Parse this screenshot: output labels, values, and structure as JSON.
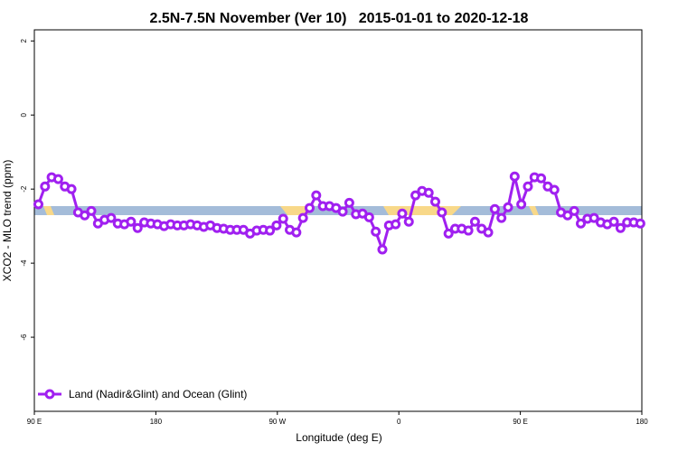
{
  "chart_data": {
    "type": "line",
    "title": "2.5N-7.5N November (Ver 10)   2015-01-01 to 2020-12-18",
    "x_label": "Longitude (deg E)",
    "y_label": "XCO2 - MLO trend (ppm)",
    "xlim": [
      90,
      540
    ],
    "xticks": [
      {
        "value": 90,
        "label": "90 E"
      },
      180,
      {
        "value": 270,
        "label": "90 W"
      },
      {
        "value": 360,
        "label": "0"
      },
      {
        "value": 450,
        "label": "90 E"
      },
      {
        "value": 540,
        "label": "180"
      }
    ],
    "ylim": [
      -8,
      2.3
    ],
    "yticks": [
      -6,
      -4,
      -2,
      0,
      2
    ],
    "legend": "bottom-left",
    "x": [
      93,
      97.9,
      102.8,
      107.7,
      112.6,
      117.5,
      122.4,
      127.3,
      132.2,
      137.1,
      142,
      146.9,
      151.8,
      156.7,
      161.6,
      166.5,
      171.4,
      176.3,
      181.2,
      186.1,
      191,
      195.9,
      200.8,
      205.7,
      210.6,
      215.5,
      220.4,
      225.3,
      230.2,
      235.1,
      240,
      244.9,
      249.8,
      254.7,
      259.6,
      264.5,
      269.4,
      274.3,
      279.2,
      284.1,
      289,
      293.9,
      298.8,
      303.7,
      308.6,
      313.5,
      318.4,
      323.3,
      328.2,
      333.1,
      338,
      342.9,
      347.8,
      352.7,
      357.6,
      362.5,
      367.4,
      372.3,
      377.2,
      382.1,
      387,
      391.9,
      396.8,
      401.7,
      406.6,
      411.5,
      416.4,
      421.3,
      426.2,
      431.1,
      436,
      440.9,
      445.8,
      450.7,
      455.6,
      460.5,
      465.4,
      470.3,
      475.2,
      480.1,
      485,
      489.9,
      494.8,
      499.7,
      504.6,
      509.5,
      514.4,
      519.3,
      524.2,
      529.1,
      534,
      538.9
    ],
    "series": [
      {
        "name": "Land (Nadir&Glint) and Ocean (Glint)",
        "color": "#a020f0",
        "values": [
          -2.41,
          -1.93,
          -1.68,
          -1.73,
          -1.93,
          -2.0,
          -2.63,
          -2.71,
          -2.59,
          -2.93,
          -2.83,
          -2.78,
          -2.93,
          -2.95,
          -2.88,
          -3.05,
          -2.9,
          -2.93,
          -2.95,
          -3.0,
          -2.95,
          -2.98,
          -2.98,
          -2.95,
          -2.98,
          -3.02,
          -2.98,
          -3.05,
          -3.07,
          -3.1,
          -3.1,
          -3.1,
          -3.2,
          -3.12,
          -3.1,
          -3.12,
          -2.98,
          -2.8,
          -3.1,
          -3.17,
          -2.78,
          -2.51,
          -2.17,
          -2.46,
          -2.46,
          -2.51,
          -2.61,
          -2.37,
          -2.68,
          -2.66,
          -2.76,
          -3.15,
          -3.63,
          -2.98,
          -2.95,
          -2.66,
          -2.88,
          -2.17,
          -2.05,
          -2.1,
          -2.34,
          -2.63,
          -3.2,
          -3.07,
          -3.07,
          -3.12,
          -2.88,
          -3.07,
          -3.17,
          -2.54,
          -2.78,
          -2.49,
          -1.66,
          -2.41,
          -1.93,
          -1.68,
          -1.71,
          -1.93,
          -2.02,
          -2.63,
          -2.71,
          -2.59,
          -2.93,
          -2.8,
          -2.78,
          -2.9,
          -2.95,
          -2.88,
          -3.05,
          -2.9,
          -2.9,
          -2.93
        ]
      }
    ]
  }
}
